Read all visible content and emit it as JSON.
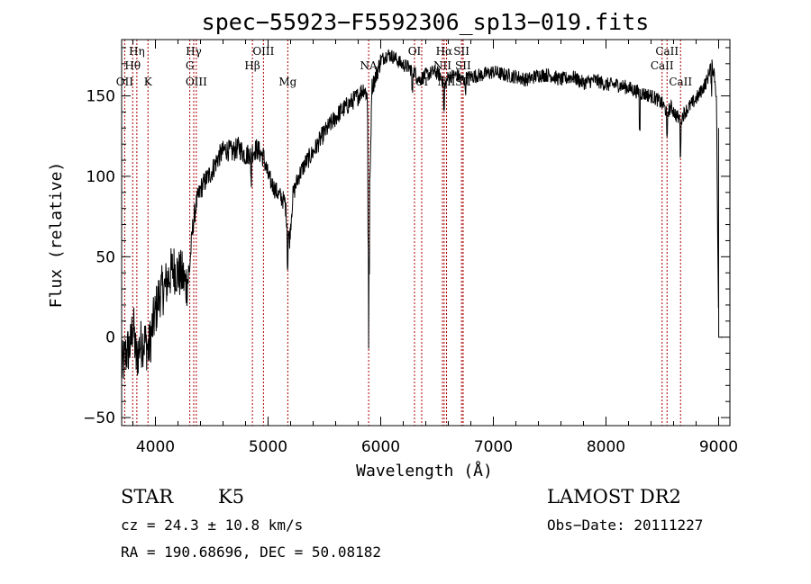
{
  "chart_data": {
    "type": "line",
    "title": "spec−55923−F5592306_sp13−019.fits",
    "xlabel": "Wavelength (Å)",
    "ylabel": "Flux (relative)",
    "xlim": [
      3700,
      9100
    ],
    "ylim": [
      -55,
      185
    ],
    "xticks": [
      4000,
      5000,
      6000,
      7000,
      8000,
      9000
    ],
    "yticks": [
      -50,
      0,
      50,
      100,
      150
    ],
    "x_minor_step": 200,
    "y_minor_step": 10,
    "grid": false,
    "spectrum_knots": [
      [
        3700,
        -20
      ],
      [
        3740,
        -10
      ],
      [
        3780,
        -5
      ],
      [
        3800,
        10
      ],
      [
        3830,
        -15
      ],
      [
        3860,
        -5
      ],
      [
        3900,
        -2
      ],
      [
        3940,
        -8
      ],
      [
        3970,
        5
      ],
      [
        4000,
        15
      ],
      [
        4040,
        28
      ],
      [
        4080,
        30
      ],
      [
        4120,
        38
      ],
      [
        4160,
        43
      ],
      [
        4200,
        40
      ],
      [
        4240,
        38
      ],
      [
        4270,
        32
      ],
      [
        4300,
        40
      ],
      [
        4330,
        68
      ],
      [
        4360,
        82
      ],
      [
        4400,
        92
      ],
      [
        4450,
        98
      ],
      [
        4500,
        103
      ],
      [
        4560,
        112
      ],
      [
        4620,
        117
      ],
      [
        4680,
        115
      ],
      [
        4740,
        118
      ],
      [
        4800,
        113
      ],
      [
        4850,
        115
      ],
      [
        4900,
        117
      ],
      [
        4960,
        112
      ],
      [
        5000,
        100
      ],
      [
        5060,
        92
      ],
      [
        5100,
        88
      ],
      [
        5150,
        84
      ],
      [
        5170,
        70
      ],
      [
        5190,
        60
      ],
      [
        5220,
        88
      ],
      [
        5270,
        100
      ],
      [
        5330,
        108
      ],
      [
        5400,
        115
      ],
      [
        5480,
        125
      ],
      [
        5560,
        133
      ],
      [
        5640,
        140
      ],
      [
        5720,
        145
      ],
      [
        5800,
        150
      ],
      [
        5850,
        155
      ],
      [
        5880,
        150
      ],
      [
        5895,
        100
      ],
      [
        5905,
        95
      ],
      [
        5920,
        155
      ],
      [
        5960,
        163
      ],
      [
        6000,
        172
      ],
      [
        6060,
        176
      ],
      [
        6120,
        174
      ],
      [
        6180,
        170
      ],
      [
        6240,
        168
      ],
      [
        6300,
        165
      ],
      [
        6340,
        160
      ],
      [
        6400,
        163
      ],
      [
        6480,
        165
      ],
      [
        6540,
        162
      ],
      [
        6563,
        155
      ],
      [
        6600,
        162
      ],
      [
        6680,
        163
      ],
      [
        6720,
        160
      ],
      [
        6800,
        162
      ],
      [
        6900,
        163
      ],
      [
        7000,
        165
      ],
      [
        7100,
        163
      ],
      [
        7200,
        162
      ],
      [
        7300,
        160
      ],
      [
        7400,
        163
      ],
      [
        7500,
        163
      ],
      [
        7600,
        160
      ],
      [
        7700,
        162
      ],
      [
        7800,
        158
      ],
      [
        7900,
        160
      ],
      [
        8000,
        157
      ],
      [
        8100,
        157
      ],
      [
        8200,
        155
      ],
      [
        8300,
        152
      ],
      [
        8400,
        150
      ],
      [
        8450,
        148
      ],
      [
        8500,
        145
      ],
      [
        8540,
        140
      ],
      [
        8580,
        143
      ],
      [
        8620,
        138
      ],
      [
        8660,
        135
      ],
      [
        8700,
        140
      ],
      [
        8760,
        145
      ],
      [
        8820,
        150
      ],
      [
        8860,
        155
      ],
      [
        8900,
        160
      ],
      [
        8930,
        170
      ],
      [
        8960,
        165
      ],
      [
        8980,
        150
      ],
      [
        9000,
        0
      ]
    ],
    "spectrum_dips": [
      [
        4850,
        -18
      ],
      [
        5173,
        -22
      ],
      [
        5890,
        -60
      ],
      [
        5896,
        -55
      ],
      [
        6280,
        -12
      ],
      [
        6563,
        -15
      ],
      [
        6750,
        -8
      ],
      [
        8298,
        -22
      ],
      [
        8542,
        -18
      ],
      [
        8662,
        -20
      ],
      [
        8935,
        -15
      ]
    ],
    "spectral_lines": [
      {
        "label": "OII",
        "wavelength": 3727,
        "row": 3
      },
      {
        "label": "Hθ",
        "wavelength": 3798,
        "row": 2
      },
      {
        "label": "Hη",
        "wavelength": 3835,
        "row": 1
      },
      {
        "label": "K",
        "wavelength": 3934,
        "row": 3
      },
      {
        "label": "Hγ",
        "wavelength": 4340,
        "row": 1
      },
      {
        "label": "G",
        "wavelength": 4305,
        "row": 2
      },
      {
        "label": "OIII",
        "wavelength": 4363,
        "row": 3
      },
      {
        "label": "Hβ",
        "wavelength": 4861,
        "row": 2
      },
      {
        "label": "OIII",
        "wavelength": 4959,
        "row": 1
      },
      {
        "label": "Mg",
        "wavelength": 5175,
        "row": 3
      },
      {
        "label": "NA",
        "wavelength": 5893,
        "row": 2
      },
      {
        "label": "OI",
        "wavelength": 6300,
        "row": 1
      },
      {
        "label": "OI",
        "wavelength": 6364,
        "row": 3
      },
      {
        "label": "Hα",
        "wavelength": 6563,
        "row": 1
      },
      {
        "label": "NII",
        "wavelength": 6548,
        "row": 2
      },
      {
        "label": "NII",
        "wavelength": 6584,
        "row": 3
      },
      {
        "label": "SII",
        "wavelength": 6717,
        "row": 1
      },
      {
        "label": "SII",
        "wavelength": 6731,
        "row": 2
      },
      {
        "label": "SII",
        "wavelength": 6731,
        "row": 3
      },
      {
        "label": "CaII",
        "wavelength": 8498,
        "row": 2
      },
      {
        "label": "CaII",
        "wavelength": 8542,
        "row": 1
      },
      {
        "label": "CaII",
        "wavelength": 8662,
        "row": 3
      }
    ]
  },
  "info": {
    "object_class": "STAR",
    "subclass": "K5",
    "redshift_line": "cz = 24.3 ± 10.8 km/s",
    "coords_line": "RA = 190.68696, DEC =  50.08182",
    "survey": "LAMOST DR2",
    "obs_date": "Obs−Date: 20111227"
  },
  "colors": {
    "axes": "#000000",
    "spectrum": "#000000",
    "line_markers": "#aa0000",
    "background": "#ffffff"
  }
}
